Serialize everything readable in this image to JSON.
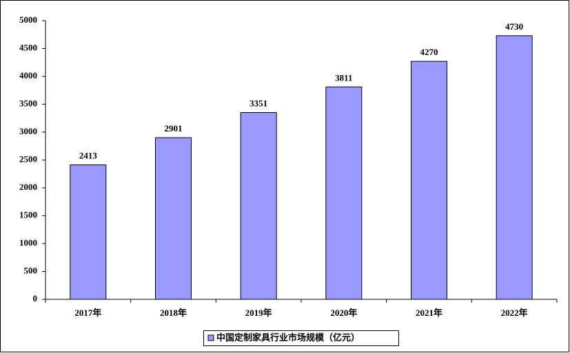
{
  "chart_data": {
    "type": "bar",
    "categories": [
      "2017年",
      "2018年",
      "2019年",
      "2020年",
      "2021年",
      "2022年"
    ],
    "series": [
      {
        "name": "中国定制家具行业市场规模（亿元）",
        "color": "#9999ff",
        "values": [
          2413,
          2901,
          3351,
          3811,
          4270,
          4730
        ]
      }
    ],
    "ylim": [
      0,
      5000
    ],
    "yticks": [
      0,
      500,
      1000,
      1500,
      2000,
      2500,
      3000,
      3500,
      4000,
      4500,
      5000
    ],
    "grid": false,
    "legend": "bottom"
  }
}
